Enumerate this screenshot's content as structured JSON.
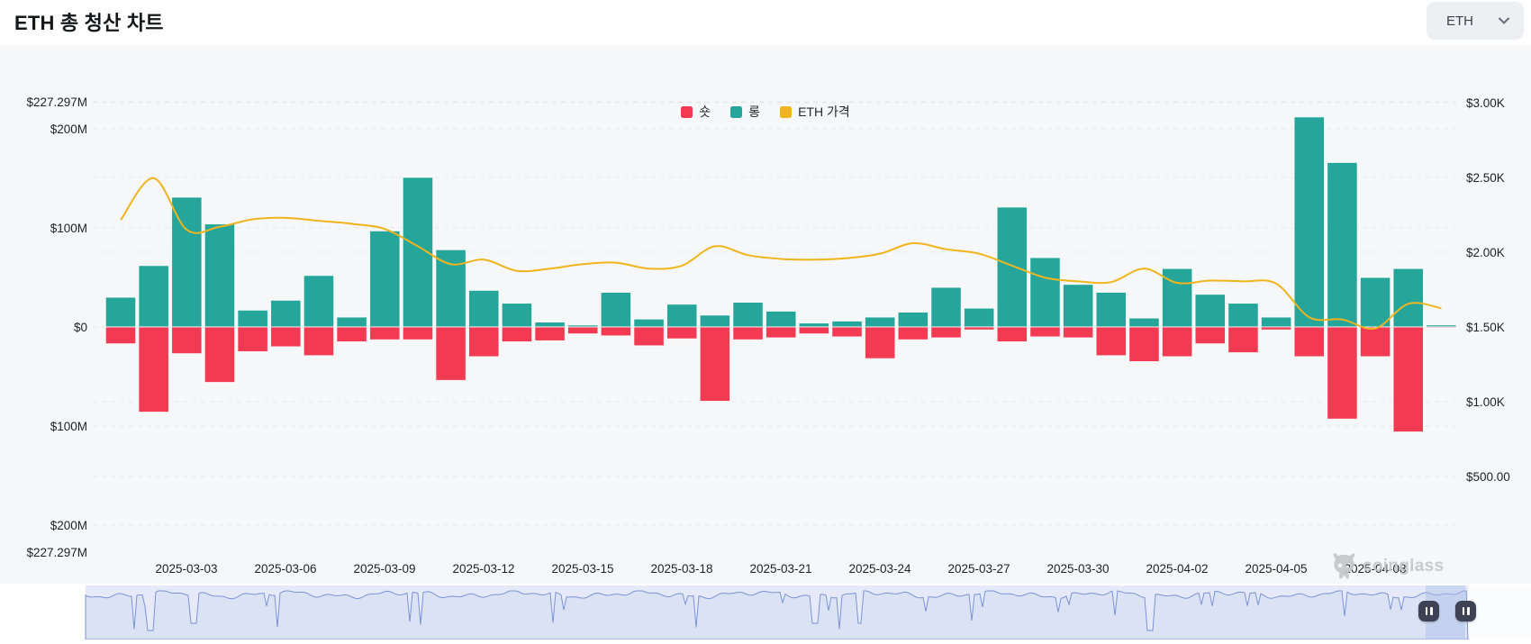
{
  "header": {
    "title": "ETH 총 청산 차트",
    "symbol_selector": {
      "value": "ETH"
    }
  },
  "legend": [
    {
      "label": "숏",
      "color": "#f23a52"
    },
    {
      "label": "롱",
      "color": "#26a69a"
    },
    {
      "label": "ETH 가격",
      "color": "#f0b41e"
    }
  ],
  "watermark": {
    "text": "coinglass"
  },
  "colors": {
    "short_bar": "#f23a52",
    "long_bar": "#26a69a",
    "price_line": "#f0b41e",
    "grid": "#e7e8ea",
    "axis_text": "#1d2025",
    "plot_bg": "#f6f7f8",
    "nav_bg": "#e6eaf8",
    "nav_line": "#7b93d6",
    "nav_fill": "#dbe2f4",
    "nav_selection": "#aabfe9",
    "nav_right_bg": "#fbfcfe",
    "nav_handle": "#3d4355"
  },
  "chart_data": {
    "type": "bar",
    "subtype": "mirrored bars (long above 0, short below 0) + price line on right axis",
    "unit": "USD millions (liquidations), USD (price)",
    "dates": [
      "2025-03-01",
      "2025-03-02",
      "2025-03-03",
      "2025-03-04",
      "2025-03-05",
      "2025-03-06",
      "2025-03-07",
      "2025-03-08",
      "2025-03-09",
      "2025-03-10",
      "2025-03-11",
      "2025-03-12",
      "2025-03-13",
      "2025-03-14",
      "2025-03-15",
      "2025-03-16",
      "2025-03-17",
      "2025-03-18",
      "2025-03-19",
      "2025-03-20",
      "2025-03-21",
      "2025-03-22",
      "2025-03-23",
      "2025-03-24",
      "2025-03-25",
      "2025-03-26",
      "2025-03-27",
      "2025-03-28",
      "2025-03-29",
      "2025-03-30",
      "2025-03-31",
      "2025-04-01",
      "2025-04-02",
      "2025-04-03",
      "2025-04-04",
      "2025-04-05",
      "2025-04-06",
      "2025-04-07",
      "2025-04-08",
      "2025-04-09",
      "2025-04-10"
    ],
    "series": [
      {
        "name": "롱",
        "type": "bar",
        "direction": "up",
        "color": "#26a69a",
        "values": [
          30,
          62,
          131,
          104,
          17,
          27,
          52,
          10,
          97,
          151,
          78,
          37,
          24,
          5,
          2,
          35,
          8,
          23,
          12,
          25,
          16,
          4,
          6,
          10,
          15,
          40,
          19,
          121,
          70,
          43,
          35,
          9,
          59,
          33,
          24,
          10,
          212,
          166,
          50,
          59,
          2
        ]
      },
      {
        "name": "숏",
        "type": "bar",
        "direction": "down",
        "color": "#f23a52",
        "values": [
          17,
          86,
          27,
          56,
          25,
          20,
          29,
          15,
          13,
          13,
          54,
          30,
          15,
          14,
          7,
          9,
          19,
          12,
          75,
          13,
          11,
          7,
          10,
          32,
          13,
          11,
          3,
          15,
          10,
          11,
          29,
          35,
          30,
          17,
          26,
          3,
          30,
          93,
          30,
          106,
          1
        ]
      },
      {
        "name": "ETH 가격",
        "type": "line",
        "axis": "right",
        "color": "#f0b41e",
        "values": [
          2215,
          2495,
          2150,
          2170,
          2220,
          2230,
          2210,
          2190,
          2155,
          2040,
          1920,
          1950,
          1875,
          1890,
          1920,
          1930,
          1890,
          1910,
          2040,
          1980,
          1955,
          1950,
          1960,
          1990,
          2060,
          2020,
          1990,
          1910,
          1830,
          1805,
          1800,
          1890,
          1795,
          1810,
          1805,
          1790,
          1565,
          1550,
          1490,
          1655,
          1625
        ]
      }
    ],
    "left_axis": {
      "ticks": [
        "$227.297M",
        "$200M",
        "$100M",
        "$0",
        "$100M",
        "$200M",
        "$227.297M"
      ],
      "tick_values": [
        227.297,
        200,
        100,
        0,
        -100,
        -200,
        -227.297
      ],
      "range": [
        -227.297,
        227.297
      ]
    },
    "right_axis": {
      "ticks": [
        "$3.00K",
        "$2.50K",
        "$2.00K",
        "$1.50K",
        "$1.00K",
        "$500.00"
      ],
      "tick_values": [
        3000,
        2500,
        2000,
        1500,
        1000,
        500
      ]
    },
    "x_tick_labels": [
      "2025-03-03",
      "2025-03-06",
      "2025-03-09",
      "2025-03-12",
      "2025-03-15",
      "2025-03-18",
      "2025-03-21",
      "2025-03-24",
      "2025-03-27",
      "2025-03-30",
      "2025-04-02",
      "2025-04-05",
      "2025-04-08"
    ],
    "grid": "dashed horizontal",
    "legend_position": "top center"
  }
}
